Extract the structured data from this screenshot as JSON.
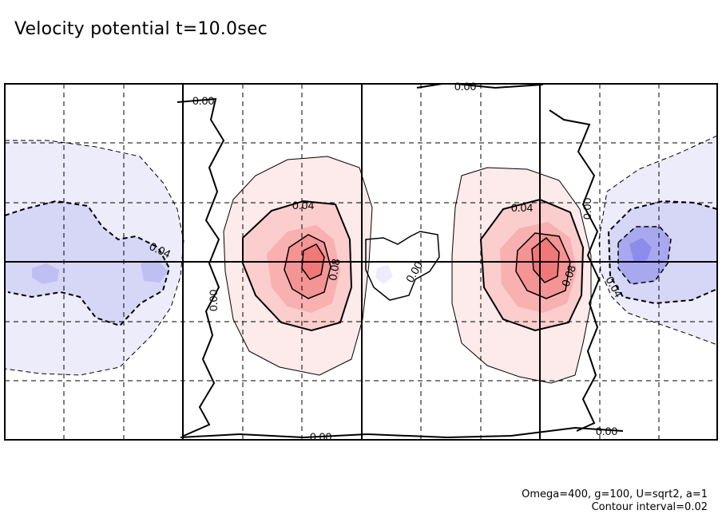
{
  "title": "Velocity potential t=10.0sec",
  "footer": {
    "params": "Omega=400, g=100, U=sqrt2, a=1",
    "interval": "Contour interval=0.02"
  },
  "chart_data": {
    "type": "heatmap",
    "title": "Velocity potential t=10.0sec",
    "contour_interval": 0.02,
    "grid": true,
    "colors": {
      "positive": "#f07070",
      "negative": "#7070f0",
      "zero_line": "#000000"
    },
    "contour_labels": [
      {
        "text": "0.00"
      },
      {
        "text": "0.00"
      },
      {
        "text": "0.00"
      },
      {
        "text": "0.00"
      },
      {
        "text": "0.00"
      },
      {
        "text": "0.00"
      },
      {
        "text": "0.00"
      },
      {
        "text": "0.04"
      },
      {
        "text": "0.04"
      },
      {
        "text": "0.04"
      },
      {
        "text": "0.04"
      },
      {
        "text": "0.08"
      },
      {
        "text": "0.08"
      }
    ],
    "features": [
      {
        "sign": "positive",
        "peak": 0.12
      },
      {
        "sign": "positive",
        "peak": 0.12
      },
      {
        "sign": "negative",
        "peak": -0.1
      },
      {
        "sign": "negative",
        "peak": -0.06
      }
    ]
  }
}
